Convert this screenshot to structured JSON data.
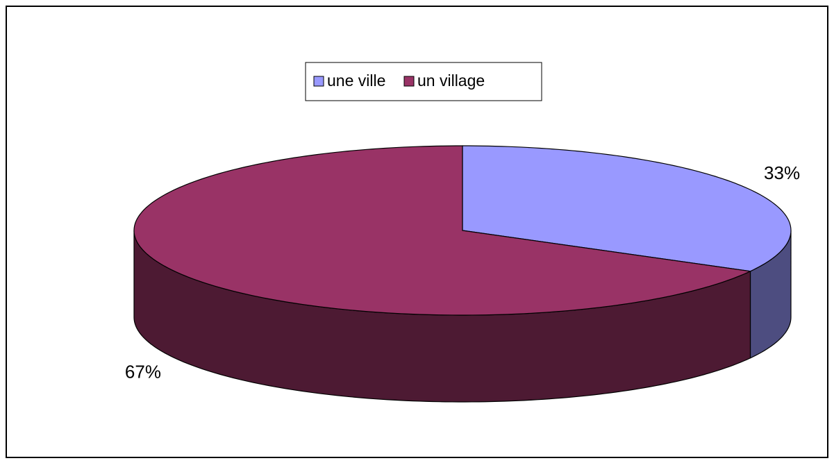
{
  "chart_data": {
    "type": "pie3d",
    "categories": [
      "une ville",
      "un village"
    ],
    "values": [
      33,
      67
    ],
    "value_labels": [
      "33%",
      "67%"
    ],
    "colors": [
      "#9999ff",
      "#993366"
    ],
    "legend": "top"
  }
}
